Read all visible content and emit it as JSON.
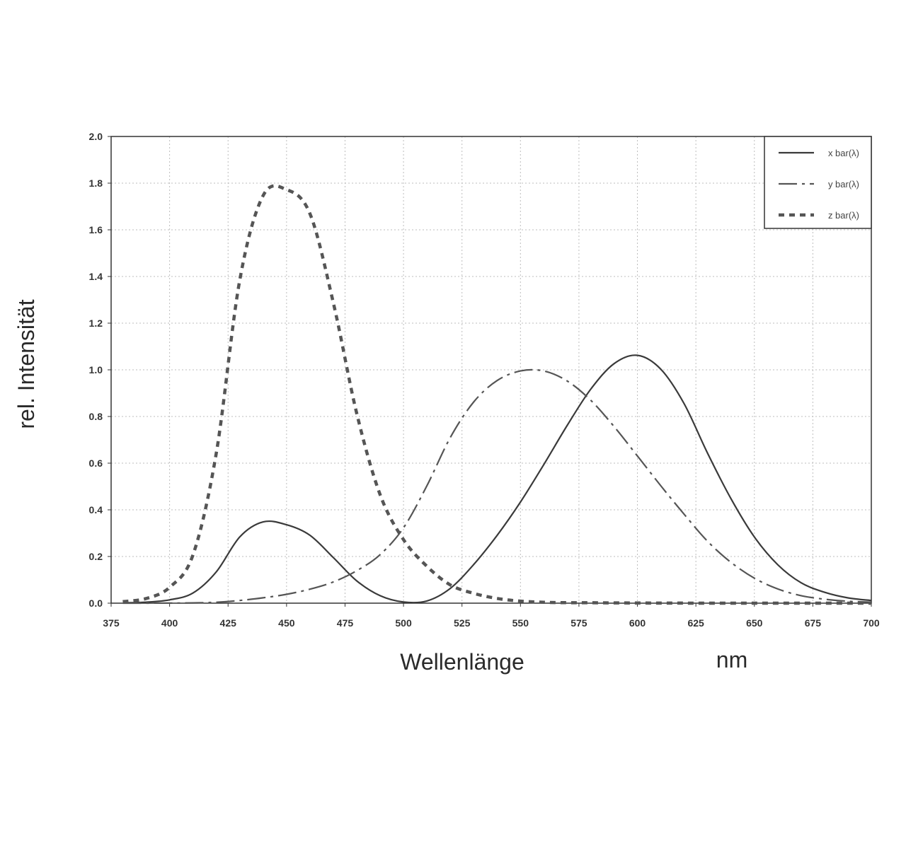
{
  "chart_data": {
    "type": "line",
    "title": "",
    "xlabel": "Wellenlänge",
    "xunit": "nm",
    "ylabel": "rel. Intensität",
    "xlim": [
      375,
      700
    ],
    "ylim": [
      0,
      2.0
    ],
    "xticks": [
      "375",
      "400",
      "425",
      "450",
      "475",
      "500",
      "525",
      "550",
      "575",
      "600",
      "625",
      "650",
      "675",
      "700"
    ],
    "yticks": [
      "0.0",
      "0.2",
      "0.4",
      "0.6",
      "0.8",
      "1.0",
      "1.2",
      "1.4",
      "1.6",
      "1.8",
      "2.0"
    ],
    "grid": true,
    "legend_position": "top-right",
    "x": [
      380,
      390,
      400,
      410,
      420,
      430,
      440,
      450,
      460,
      470,
      480,
      490,
      500,
      510,
      520,
      530,
      540,
      550,
      560,
      570,
      580,
      590,
      600,
      610,
      620,
      630,
      640,
      650,
      660,
      670,
      680,
      690,
      700
    ],
    "series": [
      {
        "name": "x bar(λ)",
        "style": "solid",
        "values": [
          0.0014,
          0.0042,
          0.0143,
          0.0435,
          0.1344,
          0.2839,
          0.3483,
          0.3362,
          0.2908,
          0.1954,
          0.0956,
          0.032,
          0.0049,
          0.0093,
          0.0633,
          0.1655,
          0.2904,
          0.4334,
          0.5945,
          0.7621,
          0.9163,
          1.0263,
          1.0622,
          1.0026,
          0.8544,
          0.6424,
          0.4479,
          0.2835,
          0.1649,
          0.0874,
          0.0468,
          0.0227,
          0.0114
        ]
      },
      {
        "name": "y bar(λ)",
        "style": "dash-dot",
        "values": [
          0.0,
          0.0001,
          0.0004,
          0.0012,
          0.004,
          0.0116,
          0.023,
          0.038,
          0.06,
          0.091,
          0.139,
          0.208,
          0.323,
          0.503,
          0.71,
          0.862,
          0.954,
          0.995,
          0.995,
          0.952,
          0.87,
          0.757,
          0.631,
          0.503,
          0.381,
          0.265,
          0.175,
          0.107,
          0.061,
          0.032,
          0.017,
          0.0082,
          0.0041
        ]
      },
      {
        "name": "z bar(λ)",
        "style": "dotted",
        "values": [
          0.0065,
          0.0201,
          0.0679,
          0.2074,
          0.6456,
          1.3856,
          1.7471,
          1.7721,
          1.6692,
          1.2876,
          0.813,
          0.4652,
          0.272,
          0.1582,
          0.0782,
          0.0422,
          0.0203,
          0.0087,
          0.0039,
          0.0021,
          0.0017,
          0.0011,
          0.0008,
          0.0003,
          0.0002,
          0.0,
          0.0,
          0.0,
          0.0,
          0.0,
          0.0,
          0.0,
          0.0
        ]
      }
    ]
  }
}
